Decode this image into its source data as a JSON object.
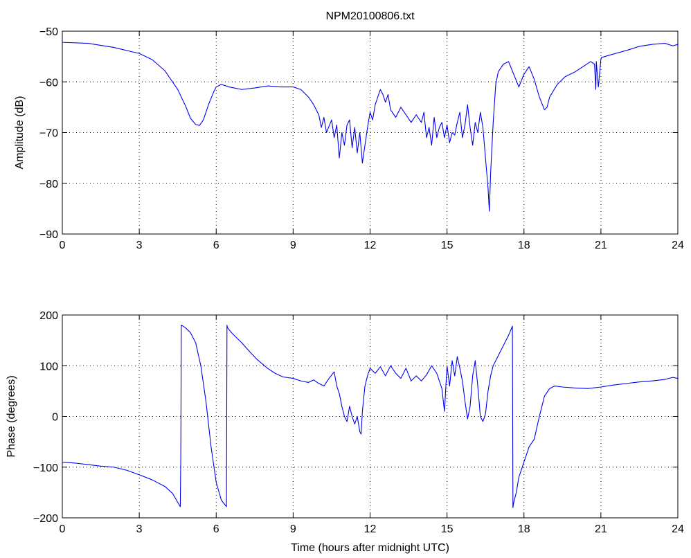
{
  "chart_data": [
    {
      "type": "line",
      "title": "NPM20100806.txt",
      "xlabel": "",
      "ylabel": "Amplitude (dB)",
      "xlim": [
        0,
        24
      ],
      "ylim": [
        -90,
        -50
      ],
      "xticks": [
        "0",
        "3",
        "6",
        "9",
        "12",
        "15",
        "18",
        "21",
        "24"
      ],
      "yticks": [
        "−90",
        "−80",
        "−70",
        "−60",
        "−50"
      ],
      "grid": true,
      "color": "#0000ee",
      "series": [
        {
          "x": [
            0,
            1,
            2,
            3,
            3.5,
            4,
            4.5,
            4.8,
            5.0,
            5.2,
            5.35,
            5.5,
            5.7,
            5.9,
            6.0,
            6.2,
            6.5,
            7,
            7.5,
            8,
            8.5,
            9,
            9.3,
            9.6,
            9.8,
            10.0,
            10.1,
            10.2,
            10.3,
            10.5,
            10.6,
            10.7,
            10.8,
            10.9,
            11.0,
            11.1,
            11.2,
            11.3,
            11.4,
            11.5,
            11.6,
            11.7,
            11.8,
            11.9,
            12.0,
            12.1,
            12.2,
            12.3,
            12.4,
            12.5,
            12.6,
            12.7,
            12.8,
            13.0,
            13.2,
            13.4,
            13.6,
            13.8,
            14.0,
            14.1,
            14.2,
            14.3,
            14.4,
            14.5,
            14.6,
            14.7,
            14.8,
            14.9,
            15.0,
            15.1,
            15.2,
            15.3,
            15.4,
            15.5,
            15.6,
            15.7,
            15.8,
            15.9,
            16.0,
            16.1,
            16.2,
            16.3,
            16.4,
            16.5,
            16.6,
            16.65,
            16.7,
            16.8,
            16.9,
            17.0,
            17.2,
            17.4,
            17.6,
            17.8,
            18.0,
            18.2,
            18.4,
            18.6,
            18.8,
            18.9,
            19.0,
            19.3,
            19.6,
            20.0,
            20.3,
            20.6,
            20.75,
            20.8,
            20.82,
            20.9,
            21.0,
            21.02,
            21.5,
            22.0,
            22.5,
            23,
            23.5,
            23.8,
            24
          ],
          "y": [
            -52.2,
            -52.4,
            -53.2,
            -54.4,
            -55.6,
            -57.8,
            -61.5,
            -64.7,
            -67.2,
            -68.4,
            -68.6,
            -67.5,
            -64.5,
            -62.0,
            -61.0,
            -60.5,
            -61.0,
            -61.5,
            -61.2,
            -60.8,
            -61.0,
            -61.0,
            -61.5,
            -63.0,
            -64.5,
            -66.5,
            -69.0,
            -67.0,
            -70.0,
            -67.5,
            -71.0,
            -68.5,
            -75.0,
            -70.0,
            -72.5,
            -68.5,
            -67.5,
            -73.0,
            -69.0,
            -74.0,
            -70.0,
            -76.0,
            -72.5,
            -69.0,
            -66.0,
            -67.5,
            -64.5,
            -63.0,
            -61.5,
            -62.5,
            -64.0,
            -62.5,
            -65.5,
            -67.0,
            -65.0,
            -66.5,
            -68.0,
            -66.5,
            -68.0,
            -66.0,
            -71.0,
            -69.0,
            -72.5,
            -67.0,
            -71.0,
            -69.0,
            -68.0,
            -71.0,
            -68.5,
            -72.0,
            -70.0,
            -70.5,
            -68.0,
            -66.0,
            -71.0,
            -68.5,
            -64.5,
            -69.0,
            -72.5,
            -68.0,
            -70.0,
            -66.0,
            -69.0,
            -75.0,
            -81.0,
            -85.5,
            -78.0,
            -68.0,
            -60.5,
            -58.0,
            -56.5,
            -56.0,
            -58.5,
            -61.0,
            -58.5,
            -57.0,
            -59.5,
            -63.0,
            -65.5,
            -65.0,
            -63.0,
            -60.5,
            -59.0,
            -58.0,
            -57.0,
            -56.0,
            -56.5,
            -61.5,
            -56.0,
            -61.0,
            -55.5,
            -55.2,
            -54.5,
            -53.8,
            -53.0,
            -52.6,
            -52.4,
            -52.9,
            -52.6
          ]
        }
      ]
    },
    {
      "type": "line",
      "title": "",
      "xlabel": "Time (hours after midnight UTC)",
      "ylabel": "Phase (degrees)",
      "xlim": [
        0,
        24
      ],
      "ylim": [
        -200,
        200
      ],
      "xticks": [
        "0",
        "3",
        "6",
        "9",
        "12",
        "15",
        "18",
        "21",
        "24"
      ],
      "yticks": [
        "−200",
        "−100",
        "0",
        "100",
        "200"
      ],
      "grid": true,
      "color": "#0000ee",
      "series": [
        {
          "x": [
            0,
            0.5,
            1,
            1.5,
            2,
            2.5,
            3,
            3.5,
            4,
            4.3,
            4.6,
            4.62,
            4.64,
            4.8,
            5.0,
            5.2,
            5.4,
            5.6,
            5.8,
            6.0,
            6.2,
            6.4,
            6.42,
            6.44,
            6.6,
            6.8,
            7.0,
            7.3,
            7.6,
            8.0,
            8.3,
            8.6,
            9.0,
            9.3,
            9.6,
            9.8,
            10.0,
            10.2,
            10.4,
            10.6,
            10.7,
            10.8,
            10.9,
            11.0,
            11.1,
            11.2,
            11.3,
            11.4,
            11.5,
            11.6,
            11.65,
            11.7,
            11.8,
            11.9,
            12.0,
            12.2,
            12.4,
            12.6,
            12.8,
            13.0,
            13.2,
            13.4,
            13.6,
            13.8,
            14.0,
            14.2,
            14.4,
            14.6,
            14.8,
            14.9,
            15.0,
            15.1,
            15.2,
            15.3,
            15.4,
            15.5,
            15.6,
            15.7,
            15.8,
            15.9,
            16.0,
            16.1,
            16.2,
            16.3,
            16.4,
            16.5,
            16.6,
            16.7,
            16.8,
            17.0,
            17.2,
            17.4,
            17.55,
            17.57,
            17.6,
            17.7,
            17.8,
            18.0,
            18.2,
            18.4,
            18.6,
            18.8,
            19.0,
            19.2,
            19.5,
            20.0,
            20.5,
            21.0,
            21.5,
            22.0,
            22.5,
            23.0,
            23.5,
            23.8,
            24.0
          ],
          "y": [
            -90,
            -92,
            -95,
            -98,
            -100,
            -106,
            -115,
            -125,
            -138,
            -152,
            -178,
            -80,
            180,
            175,
            165,
            145,
            100,
            30,
            -60,
            -130,
            -165,
            -178,
            180,
            175,
            165,
            155,
            145,
            128,
            112,
            95,
            85,
            78,
            75,
            70,
            67,
            72,
            65,
            60,
            75,
            88,
            60,
            45,
            20,
            0,
            -10,
            20,
            0,
            -15,
            0,
            -30,
            -35,
            10,
            60,
            80,
            95,
            85,
            98,
            80,
            100,
            85,
            75,
            95,
            70,
            80,
            70,
            82,
            100,
            85,
            55,
            10,
            100,
            60,
            110,
            80,
            118,
            95,
            70,
            30,
            -5,
            20,
            80,
            110,
            60,
            0,
            -10,
            5,
            50,
            80,
            100,
            120,
            140,
            160,
            178,
            -180,
            -170,
            -150,
            -120,
            -90,
            -60,
            -45,
            0,
            40,
            55,
            60,
            58,
            56,
            55,
            58,
            62,
            65,
            68,
            70,
            73,
            77,
            75
          ]
        }
      ]
    }
  ]
}
